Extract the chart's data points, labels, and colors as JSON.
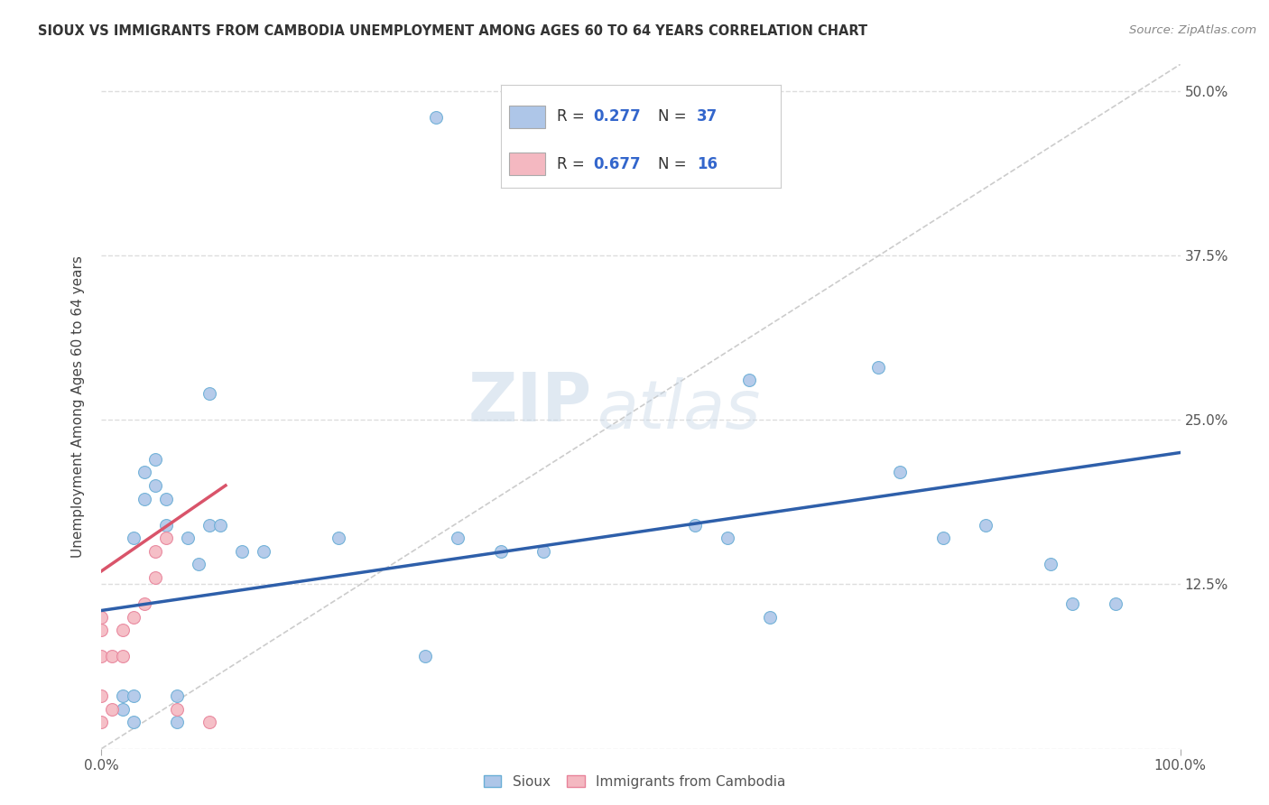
{
  "title": "SIOUX VS IMMIGRANTS FROM CAMBODIA UNEMPLOYMENT AMONG AGES 60 TO 64 YEARS CORRELATION CHART",
  "source": "Source: ZipAtlas.com",
  "ylabel": "Unemployment Among Ages 60 to 64 years",
  "xlim": [
    0.0,
    1.0
  ],
  "ylim": [
    0.0,
    0.52
  ],
  "xticklabels": [
    "0.0%",
    "100.0%"
  ],
  "ytick_positions": [
    0.0,
    0.125,
    0.25,
    0.375,
    0.5
  ],
  "ytick_labels": [
    "",
    "12.5%",
    "25.0%",
    "37.5%",
    "50.0%"
  ],
  "watermark_zip": "ZIP",
  "watermark_atlas": "atlas",
  "sioux_color": "#aec6e8",
  "sioux_edge_color": "#6aaed6",
  "cambodia_color": "#f4b8c1",
  "cambodia_edge_color": "#e8839a",
  "trend_sioux_color": "#2e5faa",
  "trend_cambodia_color": "#d9546a",
  "trend_dashed_color": "#cccccc",
  "background_color": "#ffffff",
  "grid_color": "#dddddd",
  "sioux_points_x": [
    0.02,
    0.02,
    0.03,
    0.03,
    0.03,
    0.04,
    0.04,
    0.05,
    0.05,
    0.06,
    0.06,
    0.07,
    0.07,
    0.08,
    0.09,
    0.1,
    0.1,
    0.11,
    0.13,
    0.15,
    0.22,
    0.3,
    0.31,
    0.33,
    0.37,
    0.41,
    0.55,
    0.58,
    0.6,
    0.62,
    0.72,
    0.74,
    0.78,
    0.82,
    0.88,
    0.9,
    0.94
  ],
  "sioux_points_y": [
    0.03,
    0.04,
    0.02,
    0.04,
    0.16,
    0.19,
    0.21,
    0.2,
    0.22,
    0.17,
    0.19,
    0.02,
    0.04,
    0.16,
    0.14,
    0.17,
    0.27,
    0.17,
    0.15,
    0.15,
    0.16,
    0.07,
    0.48,
    0.16,
    0.15,
    0.15,
    0.17,
    0.16,
    0.28,
    0.1,
    0.29,
    0.21,
    0.16,
    0.17,
    0.14,
    0.11,
    0.11
  ],
  "cambodia_points_x": [
    0.0,
    0.0,
    0.0,
    0.0,
    0.0,
    0.01,
    0.01,
    0.02,
    0.02,
    0.03,
    0.04,
    0.05,
    0.05,
    0.06,
    0.07,
    0.1
  ],
  "cambodia_points_y": [
    0.02,
    0.04,
    0.07,
    0.09,
    0.1,
    0.03,
    0.07,
    0.07,
    0.09,
    0.1,
    0.11,
    0.13,
    0.15,
    0.16,
    0.03,
    0.02
  ],
  "sioux_trend_x": [
    0.0,
    1.0
  ],
  "sioux_trend_y": [
    0.105,
    0.225
  ],
  "cambodia_trend_x": [
    0.0,
    0.115
  ],
  "cambodia_trend_y": [
    0.135,
    0.2
  ],
  "dashed_trend_x": [
    0.0,
    1.0
  ],
  "dashed_trend_y": [
    0.0,
    0.52
  ],
  "marker_size": 100,
  "legend_r1": "R = 0.277",
  "legend_n1": "N = 37",
  "legend_r2": "R = 0.677",
  "legend_n2": "N = 16",
  "bottom_legend1": "Sioux",
  "bottom_legend2": "Immigrants from Cambodia"
}
